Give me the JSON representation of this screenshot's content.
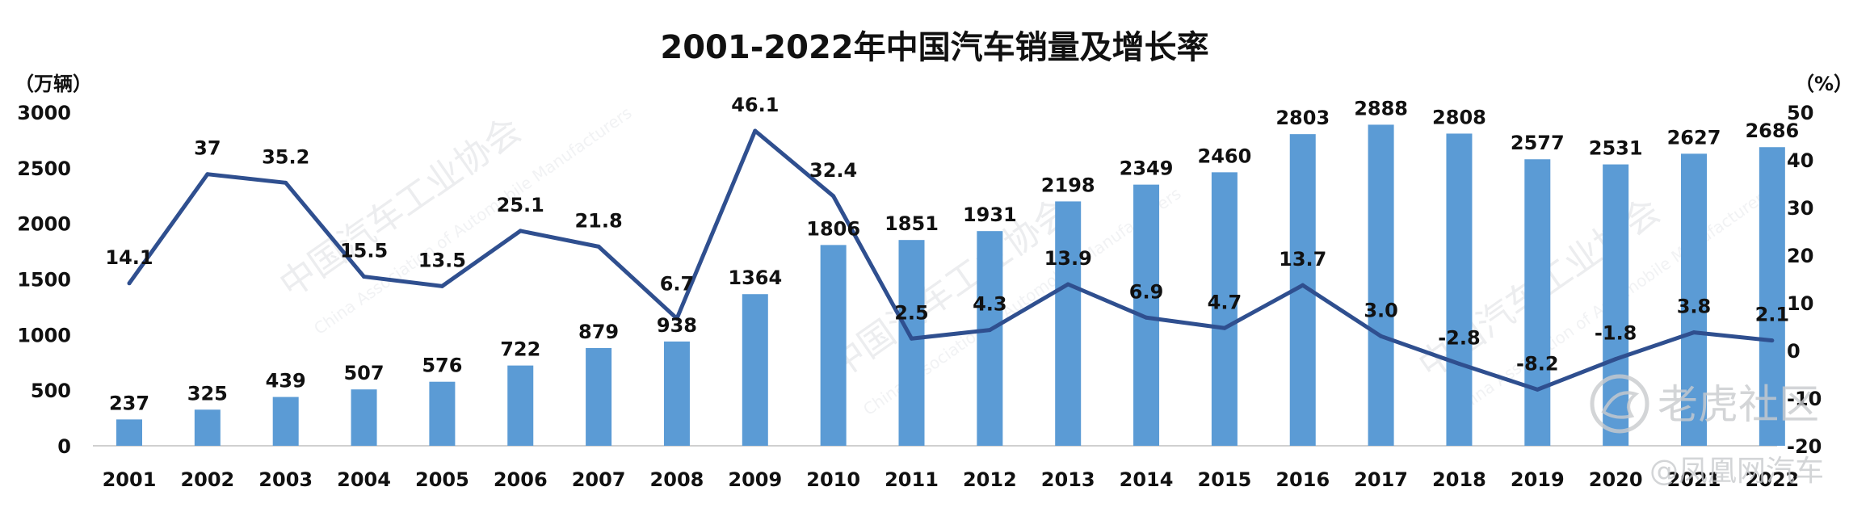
{
  "chart_data": {
    "type": "bar",
    "title": "2001-2022年中国汽车销量及增长率",
    "y_left_unit": "（万辆）",
    "y_right_unit": "（%）",
    "categories": [
      "2001",
      "2002",
      "2003",
      "2004",
      "2005",
      "2006",
      "2007",
      "2008",
      "2009",
      "2010",
      "2011",
      "2012",
      "2013",
      "2014",
      "2015",
      "2016",
      "2017",
      "2018",
      "2019",
      "2020",
      "2021",
      "2022"
    ],
    "series": [
      {
        "type": "bar",
        "axis": "left",
        "values": [
          237,
          325,
          439,
          507,
          576,
          722,
          879,
          938,
          1364,
          1806,
          1851,
          1931,
          2198,
          2349,
          2460,
          2803,
          2888,
          2808,
          2577,
          2531,
          2627,
          2686
        ],
        "labels": [
          "237",
          "325",
          "439",
          "507",
          "576",
          "722",
          "879",
          "938",
          "1364",
          "1806",
          "1851",
          "1931",
          "2198",
          "2349",
          "2460",
          "2803",
          "2888",
          "2808",
          "2577",
          "2531",
          "2627",
          "2686"
        ]
      },
      {
        "type": "line",
        "axis": "right",
        "values": [
          14.1,
          37,
          35.2,
          15.5,
          13.5,
          25.1,
          21.8,
          6.7,
          46.1,
          32.4,
          2.5,
          4.3,
          13.9,
          6.9,
          4.7,
          13.7,
          3.0,
          -2.8,
          -8.2,
          -1.8,
          3.8,
          2.1
        ],
        "labels": [
          "14.1",
          "37",
          "35.2",
          "15.5",
          "13.5",
          "25.1",
          "21.8",
          "6.7",
          "46.1",
          "32.4",
          "2.5",
          "4.3",
          "13.9",
          "6.9",
          "4.7",
          "13.7",
          "3.0",
          "-2.8",
          "-8.2",
          "-1.8",
          "3.8",
          "2.1"
        ]
      }
    ],
    "y_left": {
      "min": 0,
      "max": 3000,
      "ticks": [
        "0",
        "500",
        "1000",
        "1500",
        "2000",
        "2500",
        "3000"
      ]
    },
    "y_right": {
      "min": -20,
      "max": 50,
      "ticks": [
        "-20",
        "-10",
        "0",
        "10",
        "20",
        "30",
        "40",
        "50"
      ]
    },
    "grid": false,
    "legend": "none",
    "colors": {
      "bar": "#5b9bd5",
      "line": "#2f4f8f"
    }
  },
  "watermarks": {
    "association": "中国汽车工业协会",
    "association_en": "China Association of Automobile Manufacturers",
    "corner_brand": "老虎社区",
    "corner_source": "@凤凰网汽车"
  }
}
